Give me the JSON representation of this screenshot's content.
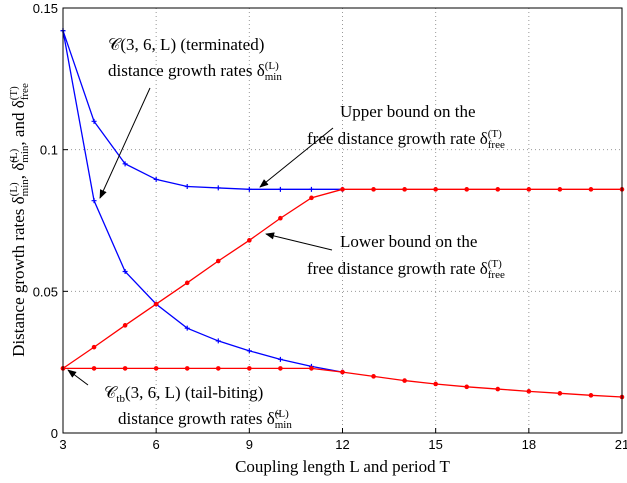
{
  "chart_data": {
    "type": "line",
    "x_label": [
      {
        "t": "Coupling length "
      },
      {
        "t": "L"
      },
      {
        "t": " and period "
      },
      {
        "t": "T"
      }
    ],
    "y_label": [
      {
        "t": "Distance growth rates δ",
        "sub": "min",
        "sup": "(L)"
      },
      {
        "t": ", δ̃",
        "sub": "min",
        "sup": "(L)"
      },
      {
        "t": ", and δ",
        "sub": "free",
        "sup": "(T)"
      }
    ],
    "x": [
      3,
      4,
      5,
      6,
      7,
      8,
      9,
      10,
      11,
      12,
      13,
      14,
      15,
      16,
      17,
      18,
      19,
      20,
      21
    ],
    "xlim": [
      3,
      21
    ],
    "xticks": [
      3,
      6,
      9,
      12,
      15,
      18,
      21
    ],
    "ylim": [
      0,
      0.15
    ],
    "yticks": [
      0,
      0.05,
      0.1,
      0.15
    ],
    "grid": true,
    "series": [
      {
        "color": "#0000ff",
        "marker": "plus",
        "values": [
          0.142,
          0.11,
          0.095,
          0.0895,
          0.087,
          0.0865,
          0.086,
          0.086,
          0.086,
          0.086,
          null,
          null,
          null,
          null,
          null,
          null,
          null,
          null,
          null
        ]
      },
      {
        "color": "#0000ff",
        "marker": "plus",
        "values": [
          0.142,
          0.082,
          0.057,
          0.0455,
          0.037,
          0.0325,
          0.029,
          0.026,
          0.0235,
          0.0215,
          null,
          null,
          null,
          null,
          null,
          null,
          null,
          null,
          null
        ]
      },
      {
        "color": "#ff0000",
        "marker": "dot",
        "values": [
          0.0228,
          0.0303,
          0.038,
          0.0455,
          0.053,
          0.0607,
          0.068,
          0.0758,
          0.083,
          0.086,
          0.086,
          0.086,
          0.086,
          0.086,
          0.086,
          0.086,
          0.086,
          0.086,
          0.086
        ]
      },
      {
        "color": "#ff0000",
        "marker": "dot",
        "values": [
          0.0228,
          0.0228,
          0.0228,
          0.0228,
          0.0228,
          0.0228,
          0.0228,
          0.0228,
          0.0228,
          0.0215,
          0.02,
          0.0185,
          0.0173,
          0.0163,
          0.0155,
          0.0147,
          0.014,
          0.0133,
          0.0127
        ]
      }
    ],
    "annotations": [
      {
        "lines": [
          [
            {
              "t": "𝒞(3, 6, L) (terminated)"
            }
          ],
          [
            {
              "t": "distance growth rates δ",
              "sub": "min",
              "sup": "(L)"
            }
          ]
        ]
      },
      {
        "lines": [
          [
            {
              "t": "Upper bound on the"
            }
          ],
          [
            {
              "t": "free distance growth rate δ",
              "sub": "free",
              "sup": "(T)"
            }
          ]
        ]
      },
      {
        "lines": [
          [
            {
              "t": "Lower bound on the"
            }
          ],
          [
            {
              "t": "free distance growth rate δ",
              "sub": "free",
              "sup": "(T)"
            }
          ]
        ]
      },
      {
        "lines": [
          [
            {
              "t": "𝒞",
              "sub": "tb"
            },
            {
              "t": "(3, 6, L) (tail-biting)"
            }
          ],
          [
            {
              "t": "distance growth rates δ̃",
              "sub": "min",
              "sup": "(L)"
            }
          ]
        ]
      }
    ]
  }
}
